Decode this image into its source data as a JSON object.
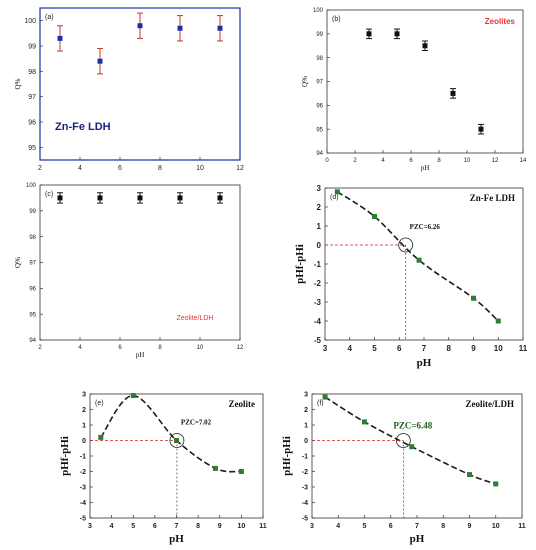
{
  "chart_data": [
    {
      "type": "scatter",
      "panel": "(a)",
      "annotation": "Zn-Fe LDH",
      "xlabel": "",
      "ylabel": "Q%",
      "xlim": [
        2,
        12
      ],
      "ylim": [
        94.5,
        100.5
      ],
      "xticks": [
        2,
        4,
        6,
        8,
        10,
        12
      ],
      "yticks": [
        95,
        96,
        97,
        98,
        99,
        100
      ],
      "error_bars": true,
      "colors": {
        "marker": "#1f2fa8",
        "error": "#c0392b",
        "annotation": "#1a237e"
      },
      "series": [
        {
          "x": [
            3,
            5,
            7,
            9,
            11
          ],
          "y": [
            99.3,
            98.4,
            99.8,
            99.7,
            99.7
          ],
          "err": [
            0.5,
            0.5,
            0.5,
            0.5,
            0.5
          ]
        }
      ]
    },
    {
      "type": "scatter",
      "panel": "(b)",
      "annotation": "Zeolites",
      "xlabel": "pH",
      "ylabel": "Q%",
      "xlim": [
        0,
        14
      ],
      "ylim": [
        94,
        100
      ],
      "xticks": [
        0,
        2,
        4,
        6,
        8,
        10,
        12,
        14
      ],
      "yticks": [
        94,
        95,
        96,
        97,
        98,
        99,
        100
      ],
      "error_bars": true,
      "colors": {
        "marker": "#111111",
        "annotation": "#e53935"
      },
      "series": [
        {
          "x": [
            3,
            5,
            7,
            9,
            11
          ],
          "y": [
            99,
            99,
            98.5,
            96.5,
            95
          ],
          "err": [
            0.2,
            0.2,
            0.2,
            0.2,
            0.2
          ]
        }
      ]
    },
    {
      "type": "scatter",
      "panel": "(c)",
      "annotation": "Zeolite/LDH",
      "xlabel": "pH",
      "ylabel": "Q%",
      "xlim": [
        2,
        12
      ],
      "ylim": [
        94,
        100
      ],
      "xticks": [
        2,
        4,
        6,
        8,
        10,
        12
      ],
      "yticks": [
        94,
        95,
        96,
        97,
        98,
        99,
        100
      ],
      "error_bars": true,
      "colors": {
        "marker": "#111111",
        "annotation": "#e53935"
      },
      "series": [
        {
          "x": [
            3,
            5,
            7,
            9,
            11
          ],
          "y": [
            99.5,
            99.5,
            99.5,
            99.5,
            99.5
          ],
          "err": [
            0.2,
            0.2,
            0.2,
            0.2,
            0.2
          ]
        }
      ]
    },
    {
      "type": "line",
      "panel": "(d)",
      "annotation": "Zn-Fe LDH",
      "pzc_label": "PZC=6.26",
      "pzc": 6.26,
      "xlabel": "pH",
      "ylabel": "pHf-pHi",
      "xlim": [
        3,
        11
      ],
      "ylim": [
        -5,
        3
      ],
      "xticks": [
        3,
        4,
        5,
        6,
        7,
        8,
        9,
        10,
        11
      ],
      "yticks": [
        -5,
        -4,
        -3,
        -2,
        -1,
        0,
        1,
        2,
        3
      ],
      "colors": {
        "marker": "#2e7d32",
        "line": "#1b1b1b",
        "guide": "#c62828"
      },
      "series": [
        {
          "x": [
            3.5,
            5,
            6.8,
            9,
            10
          ],
          "y": [
            2.8,
            1.5,
            -0.8,
            -2.8,
            -4
          ]
        }
      ]
    },
    {
      "type": "line",
      "panel": "(e)",
      "annotation": "Zeolite",
      "pzc_label": "PZC=7.02",
      "pzc": 7.02,
      "xlabel": "pH",
      "ylabel": "pHf-pHi",
      "xlim": [
        3,
        11
      ],
      "ylim": [
        -5,
        3
      ],
      "xticks": [
        3,
        4,
        5,
        6,
        7,
        8,
        9,
        10,
        11
      ],
      "yticks": [
        -5,
        -4,
        -3,
        -2,
        -1,
        0,
        1,
        2,
        3
      ],
      "colors": {
        "marker": "#2e7d32",
        "line": "#1b1b1b",
        "guide": "#c62828"
      },
      "series": [
        {
          "x": [
            3.5,
            5,
            7,
            8.8,
            10
          ],
          "y": [
            0.2,
            2.9,
            0,
            -1.8,
            -2
          ]
        }
      ]
    },
    {
      "type": "line",
      "panel": "(f)",
      "annotation": "Zeolite/LDH",
      "pzc_label": "PZC=6.48",
      "pzc": 6.48,
      "xlabel": "pH",
      "ylabel": "pHf-pHi",
      "xlim": [
        3,
        11
      ],
      "ylim": [
        -5,
        3
      ],
      "xticks": [
        3,
        4,
        5,
        6,
        7,
        8,
        9,
        10,
        11
      ],
      "yticks": [
        -5,
        -4,
        -3,
        -2,
        -1,
        0,
        1,
        2,
        3
      ],
      "colors": {
        "marker": "#2e7d32",
        "line": "#1b1b1b",
        "guide": "#c62828",
        "pzc_label": "#1b5e20"
      },
      "series": [
        {
          "x": [
            3.5,
            5,
            6.8,
            9,
            10
          ],
          "y": [
            2.8,
            1.2,
            -0.4,
            -2.2,
            -2.8
          ]
        }
      ]
    }
  ]
}
